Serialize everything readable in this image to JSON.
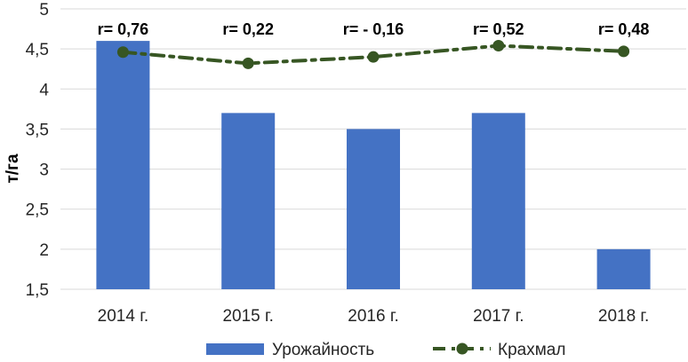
{
  "chart_data": {
    "type": "bar",
    "categories": [
      "2014 г.",
      "2015 г.",
      "2016 г.",
      "2017 г.",
      "2018 г."
    ],
    "ylabel": "т/га",
    "ylim": [
      1.5,
      5
    ],
    "yticks": [
      1.5,
      2,
      2.5,
      3,
      3.5,
      4,
      4.5,
      5
    ],
    "ytick_labels": [
      "1,5",
      "2",
      "2,5",
      "3",
      "3,5",
      "4",
      "4,5",
      "5"
    ],
    "grid": true,
    "legend_position": "bottom",
    "series": [
      {
        "name": "Урожайность",
        "type": "bar",
        "color": "#4472C4",
        "values": [
          4.6,
          3.7,
          3.5,
          3.7,
          2.0
        ]
      },
      {
        "name": "Крахмал",
        "type": "line",
        "style": "dash-dot",
        "color": "#375623",
        "values": [
          4.46,
          4.32,
          4.4,
          4.54,
          4.47
        ]
      }
    ],
    "annotations": [
      "r= 0,76",
      "r= 0,22",
      "r= - 0,16",
      "r= 0,52",
      "r= 0,48"
    ]
  }
}
